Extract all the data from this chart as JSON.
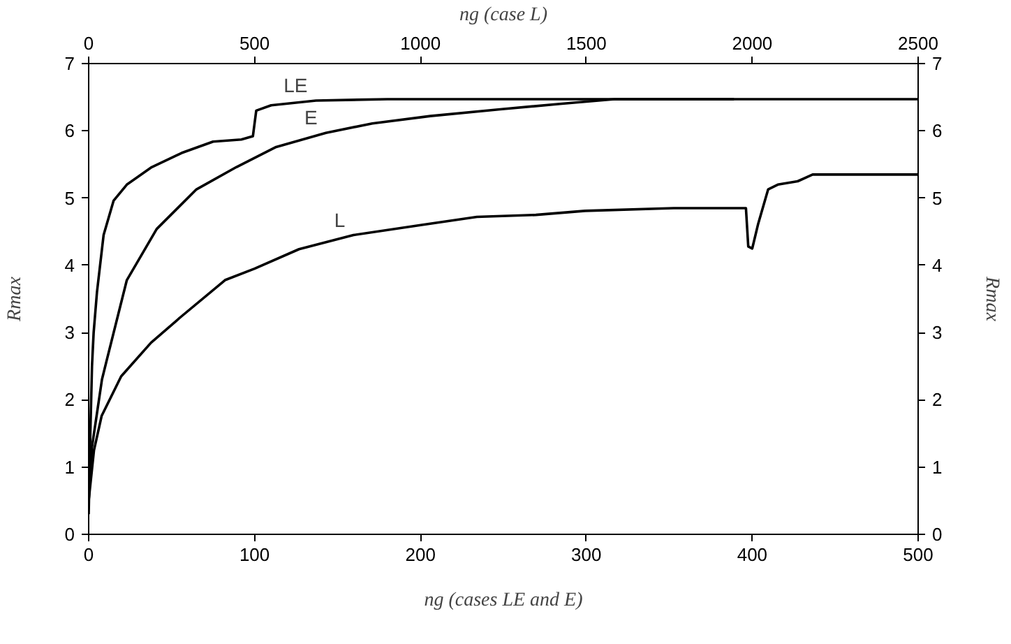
{
  "chart_data": {
    "type": "line",
    "xlabel": "ng (cases LE and E)",
    "x2label": "ng (case L)",
    "ylabel": "Rmax",
    "y2label": "Rmax",
    "xlim": [
      0,
      500
    ],
    "xticks": [
      0,
      100,
      200,
      300,
      400,
      500
    ],
    "x2lim": [
      0,
      2500
    ],
    "x2ticks": [
      0,
      500,
      1000,
      1500,
      2000,
      2500
    ],
    "ylim": [
      0,
      7
    ],
    "yticks": [
      0,
      1,
      2,
      3,
      4,
      5,
      6,
      7
    ],
    "y2lim": [
      0,
      7
    ],
    "y2ticks": [
      0,
      1,
      2,
      3,
      4,
      5,
      6,
      7
    ],
    "grid": false,
    "marker": "none",
    "line_style": "solid",
    "series": [
      {
        "name": "LE",
        "color": "#000000",
        "x": [
          0,
          1,
          2,
          3,
          5,
          9,
          15,
          23,
          38,
          56,
          75,
          92,
          99,
          101,
          110,
          137,
          180,
          500
        ],
        "values": [
          0.3,
          1.5,
          2.5,
          3.0,
          3.6,
          4.45,
          4.96,
          5.2,
          5.46,
          5.67,
          5.84,
          5.87,
          5.92,
          6.3,
          6.38,
          6.45,
          6.47,
          6.47
        ]
      },
      {
        "name": "E",
        "color": "#000000",
        "x": [
          0,
          2,
          5,
          8,
          11,
          23,
          41,
          65,
          89,
          113,
          143,
          171,
          206,
          248,
          284,
          317,
          389
        ],
        "values": [
          0.5,
          1.3,
          1.8,
          2.3,
          2.6,
          3.78,
          4.54,
          5.13,
          5.46,
          5.76,
          5.97,
          6.11,
          6.22,
          6.32,
          6.4,
          6.47,
          6.47
        ]
      },
      {
        "name": "L",
        "color": "#000000",
        "axis": "x2",
        "x": [
          0,
          16,
          39,
          98,
          188,
          277,
          411,
          500,
          634,
          798,
          1004,
          1170,
          1348,
          1496,
          1763,
          1981,
          1988,
          2000,
          2018,
          2048,
          2077,
          2137,
          2182,
          2500
        ],
        "values": [
          0.5,
          1.25,
          1.76,
          2.35,
          2.85,
          3.23,
          3.78,
          3.95,
          4.24,
          4.45,
          4.6,
          4.72,
          4.75,
          4.81,
          4.85,
          4.85,
          4.28,
          4.25,
          4.62,
          5.13,
          5.2,
          5.25,
          5.35,
          5.35
        ]
      }
    ]
  }
}
